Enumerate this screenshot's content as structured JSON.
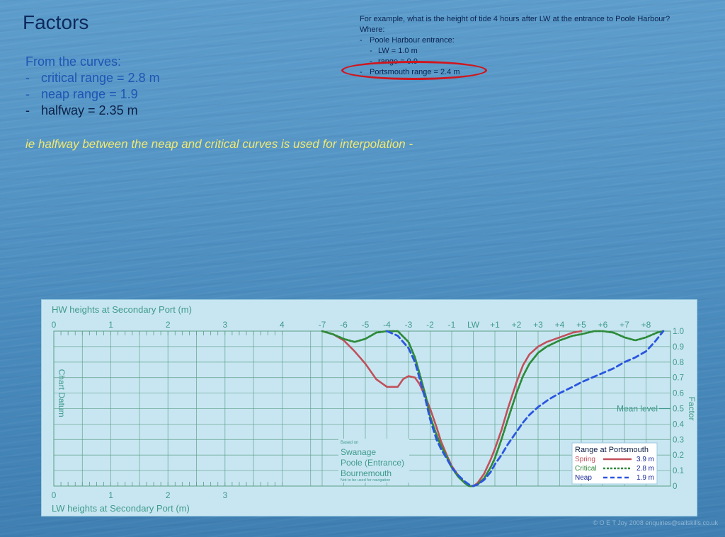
{
  "title": "Factors",
  "curves": {
    "heading": "From the curves:",
    "items": [
      {
        "dash": "-",
        "text": "critical range = 2.8 m"
      },
      {
        "dash": "-",
        "text": "neap range = 1.9"
      },
      {
        "dash": "-",
        "text": "halfway = 2.35 m"
      }
    ]
  },
  "note": "ie halfway between the neap and critical curves is used for interpolation -",
  "example": {
    "question": "For example, what is the height of tide 4 hours after LW at the entrance to Poole Harbour?",
    "where": "Where:",
    "port": "Poole Harbour entrance:",
    "lw": "LW = 1.0 m",
    "range": "range = 0.9",
    "portsmouth": "Portsmouth range  = 2.4 m",
    "dash": "-"
  },
  "copyright": "© O E T Joy 2008 enquiries@sailskills.co.uk",
  "colors": {
    "spring": "#c0505a",
    "critical": "#2e8b3a",
    "neap": "#2a55e0",
    "grid": "#5a9e84",
    "label": "#3f9a8a",
    "highlight": "#d0161e"
  },
  "chart_data": {
    "type": "line",
    "hw_title": "HW heights at Secondary Port (m)",
    "lw_title": "LW heights at Secondary Port (m)",
    "hw_ticks": [
      "0",
      "1",
      "2",
      "3",
      "4"
    ],
    "lw_ticks": [
      "0",
      "1",
      "2",
      "3"
    ],
    "chart_datum_label": "Chart Datum",
    "time_ticks": [
      "-7",
      "-6",
      "-5",
      "-4",
      "-3",
      "-2",
      "-1",
      "LW",
      "+1",
      "+2",
      "+3",
      "+4",
      "+5",
      "+6",
      "+7",
      "+8"
    ],
    "xlim": [
      -7,
      8.8
    ],
    "ylim": [
      0,
      1
    ],
    "factor_ticks": [
      "0",
      "0.1",
      "0.2",
      "0.3",
      "0.4",
      "0.5",
      "0.6",
      "0.7",
      "0.8",
      "0.9",
      "1.0"
    ],
    "ylabel": "Factor",
    "mean_level_label": "Mean level",
    "places": {
      "based_on": "Based on",
      "names": [
        "Swanage",
        "Poole (Entrance)",
        "Bournemouth"
      ],
      "disclaimer": "Not to be used for navigation"
    },
    "legend": {
      "title": "Range at Portsmouth",
      "position": "bottom-right",
      "entries": [
        {
          "name": "Spring",
          "range": "3.9 m",
          "style": "solid",
          "color": "#c0505a"
        },
        {
          "name": "Critical",
          "range": "2.8 m",
          "style": "dotted",
          "color": "#2e8b3a"
        },
        {
          "name": "Neap",
          "range": "1.9 m",
          "style": "dashed",
          "color": "#2a55e0"
        }
      ]
    },
    "series": [
      {
        "name": "Spring",
        "x": [
          -7,
          -6.5,
          -6,
          -5.5,
          -5,
          -4.5,
          -4,
          -3.5,
          -3.25,
          -3,
          -2.7,
          -2.5,
          -2.2,
          -2,
          -1.7,
          -1.5,
          -1.2,
          -1,
          -0.7,
          -0.4,
          -0.2,
          0,
          0.2,
          0.5,
          0.8,
          1,
          1.3,
          1.6,
          2,
          2.3,
          2.6,
          3,
          3.4,
          4,
          4.6,
          5
        ],
        "y": [
          1.0,
          0.98,
          0.94,
          0.87,
          0.79,
          0.69,
          0.64,
          0.64,
          0.69,
          0.71,
          0.7,
          0.66,
          0.57,
          0.5,
          0.38,
          0.29,
          0.19,
          0.13,
          0.07,
          0.02,
          0.0,
          0.0,
          0.02,
          0.08,
          0.17,
          0.24,
          0.36,
          0.5,
          0.67,
          0.78,
          0.85,
          0.9,
          0.93,
          0.96,
          0.99,
          1.0
        ]
      },
      {
        "name": "Critical",
        "x": [
          -7,
          -6.5,
          -6,
          -5.5,
          -5,
          -4.5,
          -4,
          -3.5,
          -3,
          -2.7,
          -2.5,
          -2.2,
          -2,
          -1.7,
          -1.5,
          -1.2,
          -1,
          -0.7,
          -0.4,
          -0.2,
          0,
          0.2,
          0.5,
          0.8,
          1,
          1.3,
          1.6,
          2,
          2.3,
          2.6,
          3,
          3.4,
          4,
          4.6,
          5,
          5.6,
          6,
          6.5,
          7,
          7.5,
          8,
          8.5,
          8.8
        ],
        "y": [
          1.0,
          0.98,
          0.95,
          0.93,
          0.95,
          0.99,
          1.0,
          1.0,
          0.93,
          0.83,
          0.73,
          0.58,
          0.45,
          0.33,
          0.26,
          0.18,
          0.12,
          0.06,
          0.02,
          0.0,
          0.0,
          0.01,
          0.05,
          0.12,
          0.18,
          0.3,
          0.43,
          0.6,
          0.71,
          0.79,
          0.86,
          0.9,
          0.94,
          0.97,
          0.98,
          1.0,
          1.0,
          0.99,
          0.96,
          0.94,
          0.96,
          0.99,
          1.0
        ]
      },
      {
        "name": "Neap",
        "x": [
          -4,
          -3.5,
          -3,
          -2.7,
          -2.5,
          -2.2,
          -2,
          -1.7,
          -1.5,
          -1.2,
          -1,
          -0.7,
          -0.4,
          -0.2,
          0,
          0.2,
          0.5,
          0.8,
          1,
          1.3,
          1.6,
          2,
          2.3,
          2.6,
          3,
          3.5,
          4,
          4.6,
          5,
          5.5,
          6,
          6.5,
          7,
          7.5,
          8,
          8.4,
          8.8
        ],
        "y": [
          1.0,
          0.97,
          0.89,
          0.8,
          0.7,
          0.55,
          0.43,
          0.3,
          0.24,
          0.17,
          0.12,
          0.07,
          0.03,
          0.01,
          0.0,
          0.01,
          0.04,
          0.09,
          0.14,
          0.2,
          0.27,
          0.35,
          0.41,
          0.46,
          0.51,
          0.56,
          0.6,
          0.64,
          0.67,
          0.7,
          0.73,
          0.76,
          0.8,
          0.83,
          0.87,
          0.93,
          1.0
        ]
      }
    ]
  }
}
